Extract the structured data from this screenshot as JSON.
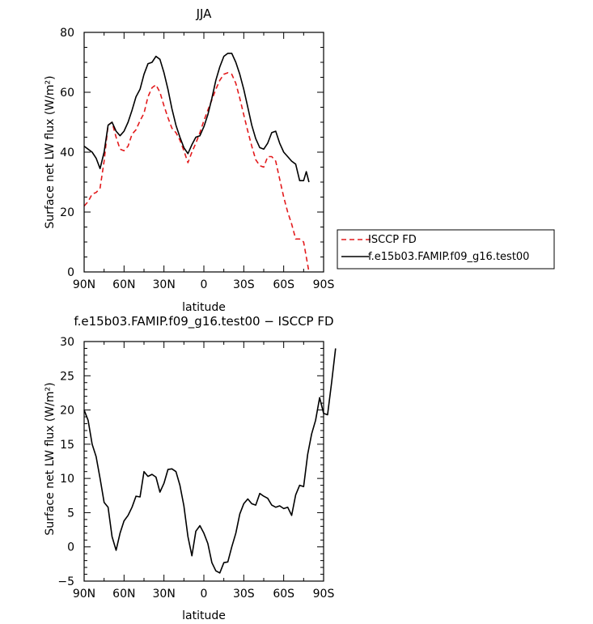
{
  "chart_data": [
    {
      "type": "line",
      "title": "JJA",
      "xlabel": "latitude",
      "ylabel": "Surface net LW flux (W/m²)",
      "xlim": [
        90,
        -90
      ],
      "ylim": [
        0,
        80
      ],
      "x_tick_values": [
        90,
        60,
        30,
        0,
        -30,
        -60,
        -90
      ],
      "x_tick_labels": [
        "90N",
        "60N",
        "30N",
        "0",
        "30S",
        "60S",
        "90S"
      ],
      "y_tick_values": [
        0,
        20,
        40,
        60,
        80
      ],
      "y_tick_labels": [
        "0",
        "20",
        "40",
        "60",
        "80"
      ],
      "legend_placement": "outside-right",
      "series": [
        {
          "name": "ISCCP FD",
          "color": "#e31a1c",
          "dash": "dashed",
          "points": [
            [
              90,
              22
            ],
            [
              87,
              23.5
            ],
            [
              84,
              26
            ],
            [
              81,
              26.5
            ],
            [
              78,
              28
            ],
            [
              75,
              37
            ],
            [
              72,
              49
            ],
            [
              69,
              50
            ],
            [
              66,
              45
            ],
            [
              63,
              41
            ],
            [
              60,
              40.5
            ],
            [
              57,
              42
            ],
            [
              54,
              46
            ],
            [
              51,
              47.5
            ],
            [
              48,
              50.5
            ],
            [
              45,
              53
            ],
            [
              42,
              58.5
            ],
            [
              39,
              61.5
            ],
            [
              36,
              62.5
            ],
            [
              33,
              60
            ],
            [
              30,
              55.5
            ],
            [
              27,
              51.5
            ],
            [
              24,
              48
            ],
            [
              21,
              46.5
            ],
            [
              18,
              44
            ],
            [
              15,
              40.5
            ],
            [
              12,
              36.5
            ],
            [
              9,
              40
            ],
            [
              6,
              43
            ],
            [
              3,
              46.5
            ],
            [
              0,
              50.5
            ],
            [
              -3,
              54
            ],
            [
              -6,
              57.5
            ],
            [
              -9,
              61
            ],
            [
              -12,
              64
            ],
            [
              -15,
              66
            ],
            [
              -18,
              66.5
            ],
            [
              -21,
              66
            ],
            [
              -24,
              63
            ],
            [
              -27,
              58
            ],
            [
              -30,
              52.5
            ],
            [
              -33,
              47
            ],
            [
              -36,
              42
            ],
            [
              -39,
              37.5
            ],
            [
              -42,
              35.5
            ],
            [
              -45,
              35
            ],
            [
              -48,
              38.5
            ],
            [
              -51,
              38.5
            ],
            [
              -54,
              37
            ],
            [
              -57,
              31
            ],
            [
              -60,
              25
            ],
            [
              -63,
              20
            ],
            [
              -66,
              16
            ],
            [
              -69,
              11
            ],
            [
              -72,
              11
            ],
            [
              -75,
              10
            ],
            [
              -77,
              5
            ],
            [
              -79,
              0
            ]
          ]
        },
        {
          "name": "f.e15b03.FAMIP.f09_g16.test00",
          "color": "#000000",
          "dash": "solid",
          "points": [
            [
              90,
              42
            ],
            [
              87,
              41
            ],
            [
              84,
              40
            ],
            [
              81,
              38
            ],
            [
              78,
              34.5
            ],
            [
              75,
              40
            ],
            [
              72,
              49
            ],
            [
              69,
              50
            ],
            [
              66,
              47
            ],
            [
              63,
              45.5
            ],
            [
              60,
              47
            ],
            [
              57,
              50
            ],
            [
              54,
              54
            ],
            [
              51,
              58.5
            ],
            [
              48,
              61
            ],
            [
              45,
              66
            ],
            [
              42,
              69.5
            ],
            [
              39,
              70
            ],
            [
              36,
              72
            ],
            [
              33,
              71
            ],
            [
              30,
              66.5
            ],
            [
              27,
              61
            ],
            [
              24,
              54.5
            ],
            [
              21,
              49
            ],
            [
              18,
              45
            ],
            [
              15,
              41.5
            ],
            [
              12,
              39.5
            ],
            [
              9,
              42.5
            ],
            [
              6,
              45
            ],
            [
              3,
              45.5
            ],
            [
              0,
              48.5
            ],
            [
              -3,
              52.5
            ],
            [
              -6,
              58
            ],
            [
              -9,
              64
            ],
            [
              -12,
              68.5
            ],
            [
              -15,
              72
            ],
            [
              -18,
              73
            ],
            [
              -21,
              73
            ],
            [
              -24,
              70
            ],
            [
              -27,
              66
            ],
            [
              -30,
              61
            ],
            [
              -33,
              55
            ],
            [
              -36,
              49
            ],
            [
              -39,
              44.5
            ],
            [
              -42,
              41.5
            ],
            [
              -45,
              41
            ],
            [
              -48,
              43
            ],
            [
              -51,
              46.5
            ],
            [
              -54,
              47
            ],
            [
              -57,
              43
            ],
            [
              -60,
              40
            ],
            [
              -63,
              38.5
            ],
            [
              -66,
              37
            ],
            [
              -69,
              36
            ],
            [
              -72,
              30.5
            ],
            [
              -75,
              30.5
            ],
            [
              -77,
              33.5
            ],
            [
              -79,
              30
            ]
          ]
        }
      ]
    },
    {
      "type": "line",
      "title": "f.e15b03.FAMIP.f09_g16.test00 − ISCCP FD",
      "xlabel": "latitude",
      "ylabel": "Surface net LW flux (W/m²)",
      "xlim": [
        90,
        -90
      ],
      "ylim": [
        -5,
        30
      ],
      "x_tick_values": [
        90,
        60,
        30,
        0,
        -30,
        -60,
        -90
      ],
      "x_tick_labels": [
        "90N",
        "60N",
        "30N",
        "0",
        "30S",
        "60S",
        "90S"
      ],
      "y_tick_values": [
        -5,
        0,
        5,
        10,
        15,
        20,
        25,
        30
      ],
      "y_tick_labels": [
        "−5",
        "0",
        "5",
        "10",
        "15",
        "20",
        "25",
        "30"
      ],
      "series": [
        {
          "color": "#000000",
          "dash": "solid",
          "points": [
            [
              90,
              20
            ],
            [
              87,
              18.5
            ],
            [
              84,
              15
            ],
            [
              81,
              13.2
            ],
            [
              78,
              10
            ],
            [
              75,
              6.5
            ],
            [
              72,
              5.8
            ],
            [
              69,
              1.5
            ],
            [
              66,
              -0.5
            ],
            [
              63,
              2
            ],
            [
              60,
              3.8
            ],
            [
              57,
              4.6
            ],
            [
              54,
              5.8
            ],
            [
              51,
              7.4
            ],
            [
              48,
              7.3
            ],
            [
              45,
              11
            ],
            [
              42,
              10.3
            ],
            [
              39,
              10.6
            ],
            [
              36,
              10.2
            ],
            [
              33,
              8
            ],
            [
              30,
              9.3
            ],
            [
              27,
              11.3
            ],
            [
              24,
              11.4
            ],
            [
              21,
              11
            ],
            [
              18,
              9
            ],
            [
              15,
              6
            ],
            [
              12,
              1.5
            ],
            [
              9,
              -1.3
            ],
            [
              6,
              2.3
            ],
            [
              3,
              3.1
            ],
            [
              0,
              2
            ],
            [
              -3,
              0.5
            ],
            [
              -6,
              -2.3
            ],
            [
              -9,
              -3.5
            ],
            [
              -12,
              -3.8
            ],
            [
              -15,
              -2.3
            ],
            [
              -18,
              -2.2
            ],
            [
              -21,
              0
            ],
            [
              -24,
              2
            ],
            [
              -27,
              4.8
            ],
            [
              -30,
              6.3
            ],
            [
              -33,
              7
            ],
            [
              -36,
              6.3
            ],
            [
              -39,
              6.1
            ],
            [
              -42,
              7.8
            ],
            [
              -45,
              7.4
            ],
            [
              -48,
              7.1
            ],
            [
              -51,
              6.1
            ],
            [
              -54,
              5.8
            ],
            [
              -57,
              6
            ],
            [
              -60,
              5.6
            ],
            [
              -63,
              5.8
            ],
            [
              -66,
              4.6
            ],
            [
              -69,
              7.6
            ],
            [
              -72,
              9
            ],
            [
              -75,
              8.8
            ],
            [
              -78,
              13.5
            ],
            [
              -81,
              16.5
            ],
            [
              -84,
              18.5
            ],
            [
              -87,
              21.8
            ],
            [
              -90,
              19.5
            ],
            [
              -93,
              19.3
            ],
            [
              -96,
              24
            ],
            [
              -99,
              29
            ]
          ]
        }
      ]
    }
  ]
}
